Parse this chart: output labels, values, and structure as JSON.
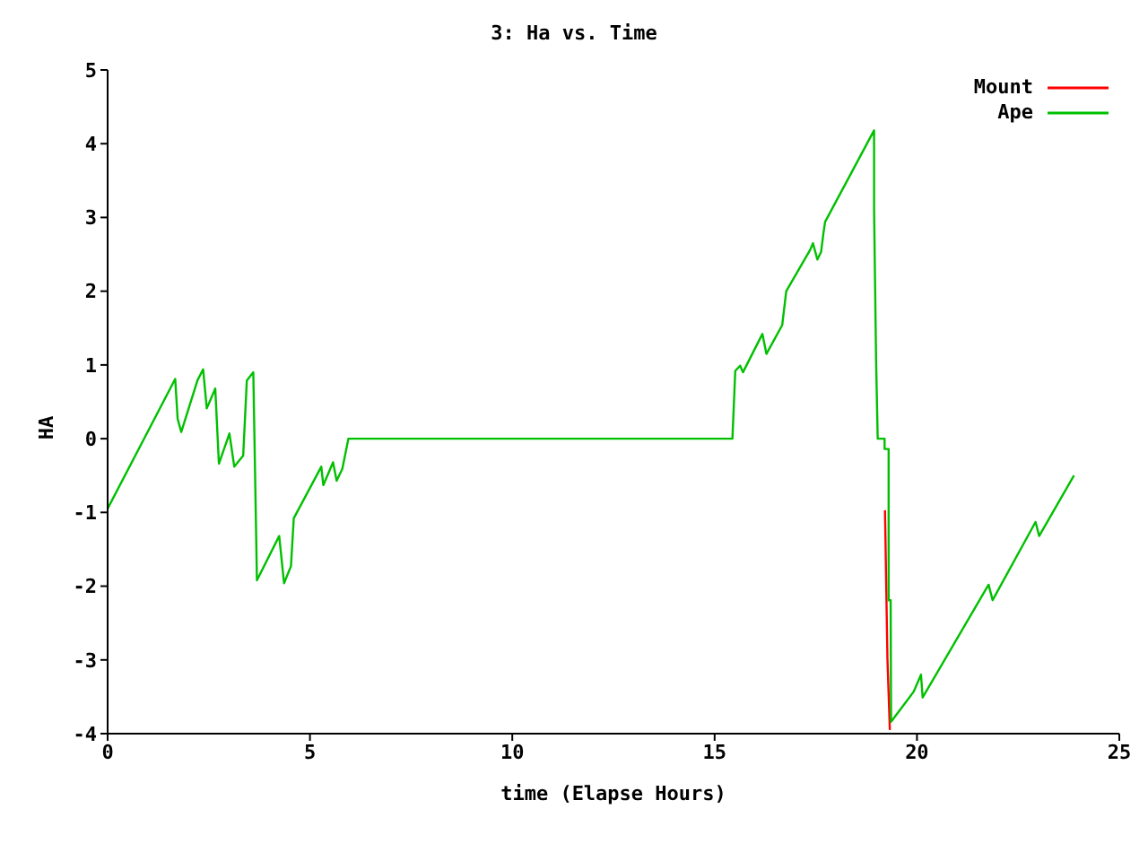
{
  "chart_data": {
    "type": "line",
    "title": "3: Ha vs. Time",
    "xlabel": "time (Elapse Hours)",
    "ylabel": "HA",
    "xlim": [
      0,
      25
    ],
    "xticks": [
      0,
      5,
      10,
      15,
      20,
      25
    ],
    "ylim": [
      -4,
      5
    ],
    "yticks": [
      -4,
      -3,
      -2,
      -1,
      0,
      1,
      2,
      3,
      4,
      5
    ],
    "grid": false,
    "legend": "top right",
    "marker": "none",
    "line_style": "solid",
    "series": [
      {
        "name": "Mount",
        "color": "#ff0000",
        "x": [
          19.21,
          19.27,
          19.33
        ],
        "values": [
          -0.97,
          -2.98,
          -3.95
        ]
      },
      {
        "name": "Ape",
        "color": "#00c000",
        "x": [
          0,
          1.67,
          1.73,
          1.82,
          2.22,
          2.36,
          2.45,
          2.66,
          2.75,
          3.01,
          3.13,
          3.35,
          3.44,
          3.6,
          3.69,
          4.24,
          4.36,
          4.53,
          4.6,
          5.28,
          5.33,
          5.57,
          5.66,
          5.8,
          5.95,
          15.44,
          15.51,
          15.63,
          15.7,
          16.18,
          16.28,
          16.67,
          16.77,
          17.36,
          17.43,
          17.54,
          17.63,
          17.69,
          17.73,
          18.94,
          18.94,
          18.99,
          19.03,
          19.2,
          19.2,
          19.3,
          19.3,
          19.35,
          19.36,
          19.92,
          20.1,
          20.14,
          21.77,
          21.87,
          22.93,
          23.02,
          23.88
        ],
        "values": [
          -0.95,
          0.81,
          0.27,
          0.09,
          0.79,
          0.94,
          0.41,
          0.68,
          -0.34,
          0.07,
          -0.38,
          -0.23,
          0.79,
          0.9,
          -1.92,
          -1.32,
          -1.96,
          -1.73,
          -1.08,
          -0.38,
          -0.63,
          -0.32,
          -0.57,
          -0.41,
          0,
          0,
          0.92,
          0.99,
          0.9,
          1.42,
          1.15,
          1.54,
          2.0,
          2.56,
          2.65,
          2.43,
          2.53,
          2.79,
          2.94,
          4.18,
          3.12,
          1.06,
          0,
          0,
          -0.14,
          -0.14,
          -2.19,
          -2.19,
          -3.84,
          -3.43,
          -3.2,
          -3.51,
          -1.98,
          -2.19,
          -1.13,
          -1.32,
          -0.5
        ]
      }
    ]
  }
}
